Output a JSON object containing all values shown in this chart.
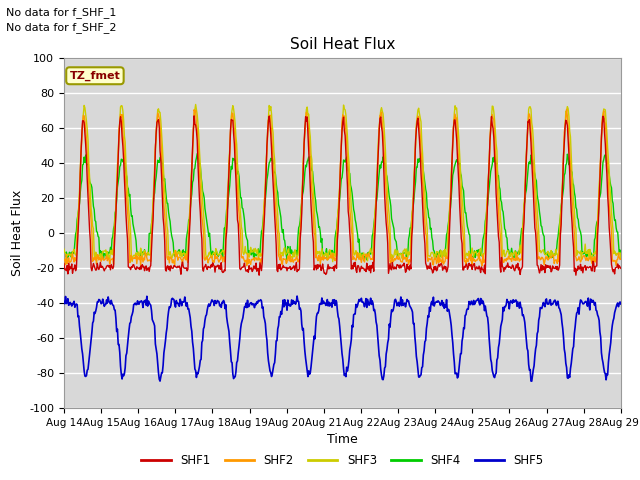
{
  "title": "Soil Heat Flux",
  "ylabel": "Soil Heat Flux",
  "xlabel": "Time",
  "note_line1": "No data for f_SHF_1",
  "note_line2": "No data for f_SHF_2",
  "tz_label": "TZ_fmet",
  "ylim": [
    -100,
    100
  ],
  "xtick_labels": [
    "Aug 14",
    "Aug 15",
    "Aug 16",
    "Aug 17",
    "Aug 18",
    "Aug 19",
    "Aug 20",
    "Aug 21",
    "Aug 22",
    "Aug 23",
    "Aug 24",
    "Aug 25",
    "Aug 26",
    "Aug 27",
    "Aug 28",
    "Aug 29"
  ],
  "series_colors": {
    "SHF1": "#cc0000",
    "SHF2": "#ff9900",
    "SHF3": "#cccc00",
    "SHF4": "#00cc00",
    "SHF5": "#0000cc"
  },
  "background_color": "#d8d8d8",
  "grid_color": "#ffffff"
}
